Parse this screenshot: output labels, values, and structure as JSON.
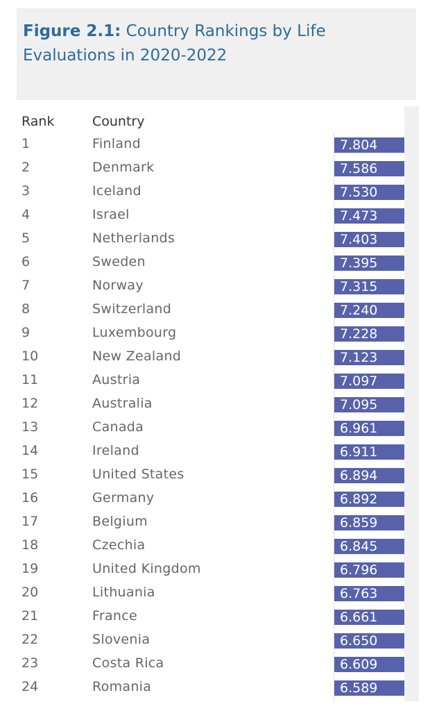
{
  "title": {
    "figure_label": "Figure 2.1:",
    "text": " Country Rankings by Life Evaluations in 2020-2022"
  },
  "columns": {
    "rank": "Rank",
    "country": "Country"
  },
  "colors": {
    "bar": "#5762ab",
    "title": "#2f6b9a",
    "panel": "#f0f0f0"
  },
  "chart_data": {
    "type": "bar",
    "title": "Figure 2.1: Country Rankings by Life Evaluations in 2020-2022",
    "rows": [
      {
        "rank": "1",
        "country": "Finland",
        "value": "7.804"
      },
      {
        "rank": "2",
        "country": "Denmark",
        "value": "7.586"
      },
      {
        "rank": "3",
        "country": "Iceland",
        "value": "7.530"
      },
      {
        "rank": "4",
        "country": "Israel",
        "value": "7.473"
      },
      {
        "rank": "5",
        "country": "Netherlands",
        "value": "7.403"
      },
      {
        "rank": "6",
        "country": "Sweden",
        "value": "7.395"
      },
      {
        "rank": "7",
        "country": "Norway",
        "value": "7.315"
      },
      {
        "rank": "8",
        "country": "Switzerland",
        "value": "7.240"
      },
      {
        "rank": "9",
        "country": "Luxembourg",
        "value": "7.228"
      },
      {
        "rank": "10",
        "country": "New Zealand",
        "value": "7.123"
      },
      {
        "rank": "11",
        "country": "Austria",
        "value": "7.097"
      },
      {
        "rank": "12",
        "country": "Australia",
        "value": "7.095"
      },
      {
        "rank": "13",
        "country": "Canada",
        "value": "6.961"
      },
      {
        "rank": "14",
        "country": "Ireland",
        "value": "6.911"
      },
      {
        "rank": "15",
        "country": "United States",
        "value": "6.894"
      },
      {
        "rank": "16",
        "country": "Germany",
        "value": "6.892"
      },
      {
        "rank": "17",
        "country": "Belgium",
        "value": "6.859"
      },
      {
        "rank": "18",
        "country": "Czechia",
        "value": "6.845"
      },
      {
        "rank": "19",
        "country": "United Kingdom",
        "value": "6.796"
      },
      {
        "rank": "20",
        "country": "Lithuania",
        "value": "6.763"
      },
      {
        "rank": "21",
        "country": "France",
        "value": "6.661"
      },
      {
        "rank": "22",
        "country": "Slovenia",
        "value": "6.650"
      },
      {
        "rank": "23",
        "country": "Costa Rica",
        "value": "6.609"
      },
      {
        "rank": "24",
        "country": "Romania",
        "value": "6.589"
      }
    ]
  }
}
